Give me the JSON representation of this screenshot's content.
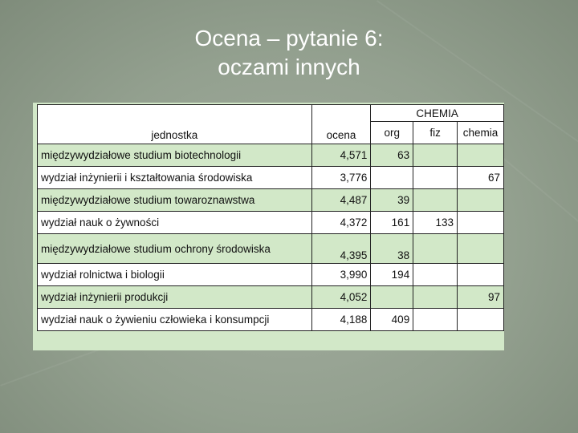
{
  "title_line1": "Ocena – pytanie 6:",
  "title_line2": "oczami innych",
  "table": {
    "group_header": "CHEMIA",
    "headers": {
      "unit": "jednostka",
      "score": "ocena",
      "org": "org",
      "fiz": "fiz",
      "chemia": "chemia"
    },
    "rows": [
      {
        "unit": "międzywydziałowe studium biotechnologii",
        "score": "4,571",
        "org": "63",
        "fiz": "",
        "chemia": ""
      },
      {
        "unit": "wydział inżynierii i kształtowania środowiska",
        "score": "3,776",
        "org": "",
        "fiz": "",
        "chemia": "67"
      },
      {
        "unit": "międzywydziałowe studium towaroznawstwa",
        "score": "4,487",
        "org": "39",
        "fiz": "",
        "chemia": ""
      },
      {
        "unit": "wydział nauk o żywności",
        "score": "4,372",
        "org": "161",
        "fiz": "133",
        "chemia": ""
      },
      {
        "unit": "międzywydziałowe studium ochrony środowiska",
        "score": "4,395",
        "org": "38",
        "fiz": "",
        "chemia": ""
      },
      {
        "unit": "wydział rolnictwa i biologii",
        "score": "3,990",
        "org": "194",
        "fiz": "",
        "chemia": ""
      },
      {
        "unit": "wydział inżynierii produkcji",
        "score": "4,052",
        "org": "",
        "fiz": "",
        "chemia": "97"
      },
      {
        "unit": "wydział nauk o żywieniu człowieka i konsumpcji",
        "score": "4,188",
        "org": "409",
        "fiz": "",
        "chemia": ""
      }
    ]
  }
}
